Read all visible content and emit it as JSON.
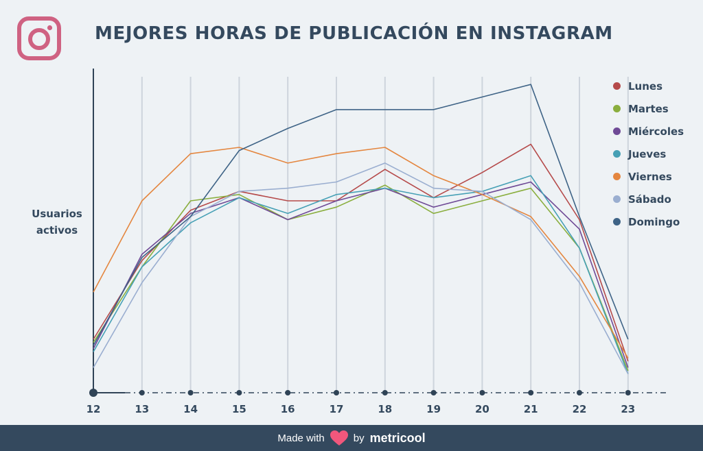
{
  "title": "MEJORES HORAS DE PUBLICACIÓN EN INSTAGRAM",
  "y_axis_label": "Usuarios activos",
  "footer": {
    "made_with": "Made with",
    "by": "by",
    "brand": "metricool"
  },
  "colors": {
    "background": "#eef2f5",
    "title": "#34495e",
    "footer_bg": "#34495e",
    "instagram_logo": "#cf6282",
    "heart": "#f1577c",
    "grid": "#cdd4dc"
  },
  "chart_data": {
    "type": "line",
    "title": "MEJORES HORAS DE PUBLICACIÓN EN INSTAGRAM",
    "xlabel": "",
    "ylabel": "Usuarios activos",
    "x": [
      "12",
      "13",
      "14",
      "15",
      "16",
      "17",
      "18",
      "19",
      "20",
      "21",
      "22",
      "23"
    ],
    "ylim": [
      0,
      100
    ],
    "grid": true,
    "legend": "right",
    "y_ticks_shown": false,
    "series": [
      {
        "name": "Lunes",
        "color": "#b54a4a",
        "values": [
          17,
          42,
          58,
          64,
          61,
          61,
          71,
          62,
          70,
          79,
          55,
          10
        ]
      },
      {
        "name": "Martes",
        "color": "#8aae3e",
        "values": [
          16,
          40,
          61,
          63,
          55,
          59,
          66,
          57,
          61,
          65,
          46,
          7
        ]
      },
      {
        "name": "Miércoles",
        "color": "#6f4a96",
        "values": [
          14,
          44,
          57,
          62,
          55,
          61,
          65,
          59,
          63,
          67,
          52,
          8
        ]
      },
      {
        "name": "Jueves",
        "color": "#46a0b5",
        "values": [
          13,
          40,
          54,
          62,
          57,
          63,
          65,
          62,
          64,
          69,
          46,
          6
        ]
      },
      {
        "name": "Viernes",
        "color": "#e4863f",
        "values": [
          32,
          61,
          76,
          78,
          73,
          76,
          78,
          69,
          63,
          56,
          37,
          11
        ]
      },
      {
        "name": "Sábado",
        "color": "#9aaed0",
        "values": [
          8,
          35,
          56,
          64,
          65,
          67,
          73,
          65,
          64,
          55,
          35,
          6
        ]
      },
      {
        "name": "Domingo",
        "color": "#3e6386",
        "values": [
          15,
          43,
          56,
          77,
          84,
          90,
          90,
          90,
          94,
          98,
          56,
          17
        ]
      }
    ]
  }
}
